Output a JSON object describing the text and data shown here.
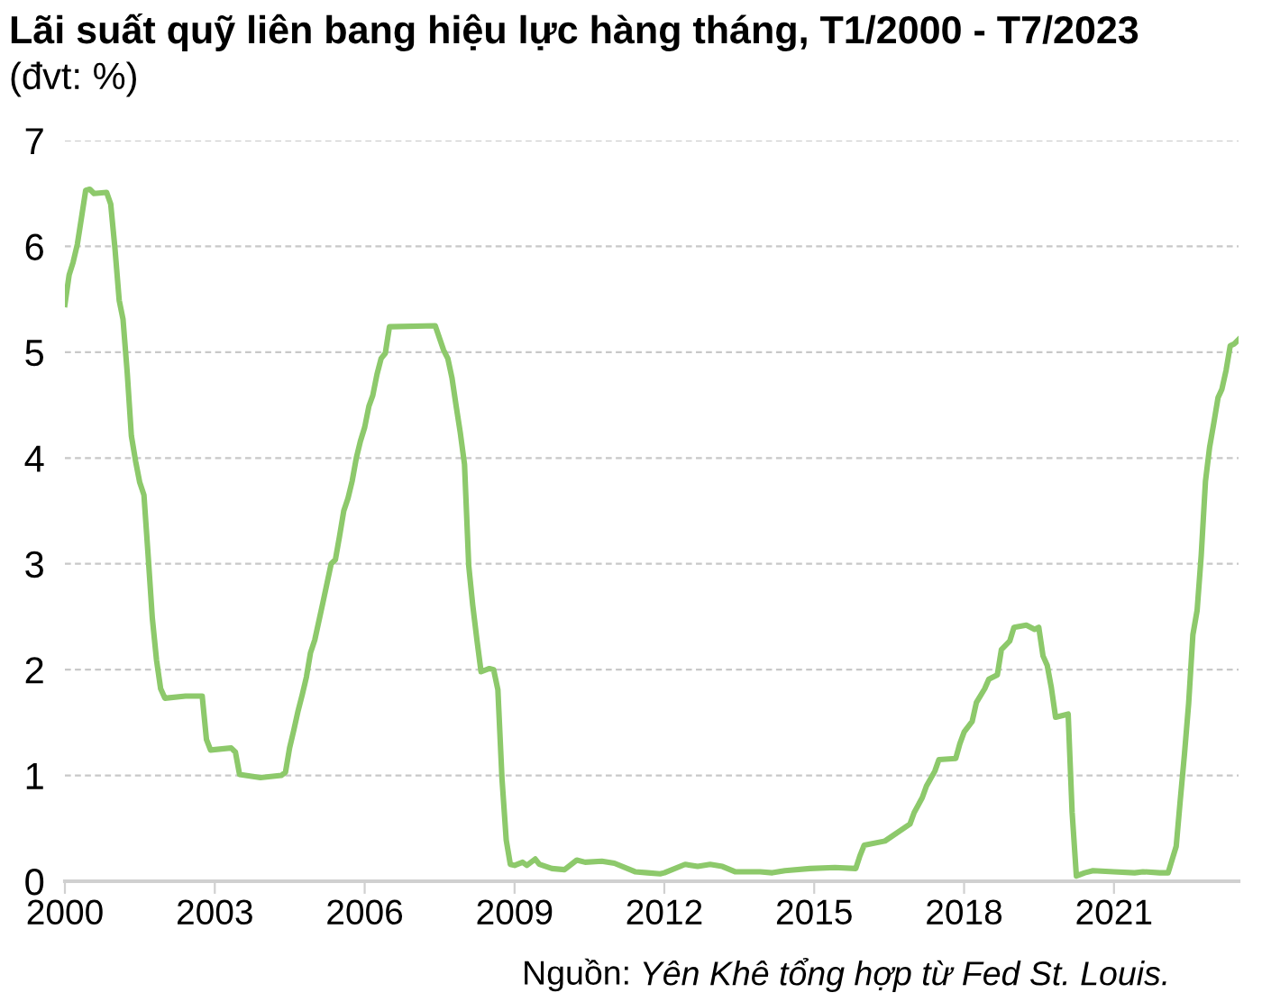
{
  "chart_data": {
    "type": "line",
    "title": "Lãi suất quỹ liên bang hiệu lực hàng tháng, T1/2000 - T7/2023",
    "subtitle": "(đvt: %)",
    "annotations": [
      "Nguồn: Yên Khê tổng hợp từ Fed St. Louis."
    ],
    "x": [
      "2000-01",
      "2000-02",
      "2000-03",
      "2000-04",
      "2000-05",
      "2000-06",
      "2000-07",
      "2000-08",
      "2000-11",
      "2000-12",
      "2001-01",
      "2001-02",
      "2001-03",
      "2001-04",
      "2001-05",
      "2001-06",
      "2001-07",
      "2001-08",
      "2001-09",
      "2001-10",
      "2001-11",
      "2001-12",
      "2002-01",
      "2002-06",
      "2002-10",
      "2002-11",
      "2002-12",
      "2003-05",
      "2003-06",
      "2003-07",
      "2003-12",
      "2004-05",
      "2004-06",
      "2004-07",
      "2004-08",
      "2004-09",
      "2004-10",
      "2004-11",
      "2004-12",
      "2005-01",
      "2005-03",
      "2005-05",
      "2005-06",
      "2005-07",
      "2005-08",
      "2005-09",
      "2005-10",
      "2005-11",
      "2005-12",
      "2006-01",
      "2006-02",
      "2006-03",
      "2006-04",
      "2006-05",
      "2006-06",
      "2006-07",
      "2007-06",
      "2007-08",
      "2007-09",
      "2007-10",
      "2007-11",
      "2007-12",
      "2008-01",
      "2008-02",
      "2008-03",
      "2008-04",
      "2008-05",
      "2008-07",
      "2008-08",
      "2008-09",
      "2008-10",
      "2008-11",
      "2008-12",
      "2009-01",
      "2009-03",
      "2009-04",
      "2009-06",
      "2009-07",
      "2009-10",
      "2010-01",
      "2010-04",
      "2010-06",
      "2010-10",
      "2011-01",
      "2011-06",
      "2011-09",
      "2011-12",
      "2012-01",
      "2012-06",
      "2012-09",
      "2012-12",
      "2013-03",
      "2013-06",
      "2013-12",
      "2014-03",
      "2014-06",
      "2014-12",
      "2015-06",
      "2015-11",
      "2015-12",
      "2016-01",
      "2016-06",
      "2016-12",
      "2017-01",
      "2017-03",
      "2017-04",
      "2017-06",
      "2017-07",
      "2017-11",
      "2017-12",
      "2018-01",
      "2018-03",
      "2018-04",
      "2018-06",
      "2018-07",
      "2018-09",
      "2018-10",
      "2018-12",
      "2019-01",
      "2019-04",
      "2019-06",
      "2019-07",
      "2019-08",
      "2019-09",
      "2019-10",
      "2019-11",
      "2020-02",
      "2020-03",
      "2020-04",
      "2020-06",
      "2020-08",
      "2021-01",
      "2021-06",
      "2021-08",
      "2021-12",
      "2022-02",
      "2022-03",
      "2022-04",
      "2022-05",
      "2022-06",
      "2022-07",
      "2022-08",
      "2022-09",
      "2022-10",
      "2022-11",
      "2022-12",
      "2023-01",
      "2023-02",
      "2023-03",
      "2023-04",
      "2023-05",
      "2023-06",
      "2023-07"
    ],
    "series": [
      {
        "color": "#8dc96b",
        "values": [
          5.45,
          5.73,
          5.85,
          6.02,
          6.27,
          6.53,
          6.54,
          6.5,
          6.51,
          6.4,
          5.98,
          5.49,
          5.31,
          4.8,
          4.21,
          3.97,
          3.77,
          3.65,
          3.07,
          2.49,
          2.09,
          1.82,
          1.73,
          1.75,
          1.75,
          1.34,
          1.24,
          1.26,
          1.22,
          1.01,
          0.98,
          1.0,
          1.03,
          1.26,
          1.43,
          1.61,
          1.76,
          1.93,
          2.16,
          2.28,
          2.63,
          3.0,
          3.04,
          3.26,
          3.5,
          3.62,
          3.78,
          4.0,
          4.16,
          4.29,
          4.49,
          4.59,
          4.79,
          4.94,
          4.99,
          5.24,
          5.25,
          5.02,
          4.94,
          4.76,
          4.49,
          4.24,
          3.94,
          2.98,
          2.61,
          2.28,
          1.98,
          2.01,
          2.0,
          1.81,
          0.97,
          0.39,
          0.16,
          0.15,
          0.18,
          0.15,
          0.21,
          0.16,
          0.12,
          0.11,
          0.2,
          0.18,
          0.19,
          0.17,
          0.09,
          0.08,
          0.07,
          0.08,
          0.16,
          0.14,
          0.16,
          0.14,
          0.09,
          0.09,
          0.08,
          0.1,
          0.12,
          0.13,
          0.12,
          0.24,
          0.34,
          0.38,
          0.54,
          0.65,
          0.79,
          0.9,
          1.04,
          1.15,
          1.16,
          1.3,
          1.41,
          1.51,
          1.69,
          1.82,
          1.91,
          1.95,
          2.19,
          2.27,
          2.4,
          2.42,
          2.38,
          2.4,
          2.13,
          2.04,
          1.83,
          1.55,
          1.58,
          0.65,
          0.05,
          0.08,
          0.1,
          0.09,
          0.08,
          0.09,
          0.08,
          0.08,
          0.2,
          0.33,
          0.77,
          1.21,
          1.68,
          2.33,
          2.56,
          3.08,
          3.78,
          4.1,
          4.33,
          4.57,
          4.65,
          4.83,
          5.06,
          5.08,
          5.12
        ]
      }
    ],
    "xlim": [
      "2000-01",
      "2023-07"
    ],
    "xticks": [
      "2000",
      "2003",
      "2006",
      "2009",
      "2012",
      "2015",
      "2018",
      "2021"
    ],
    "ylim": [
      0,
      7
    ],
    "yticks": [
      0,
      1,
      2,
      3,
      4,
      5,
      6,
      7
    ],
    "grid": "y",
    "line_style": "solid",
    "marker": "none",
    "legend": false
  }
}
